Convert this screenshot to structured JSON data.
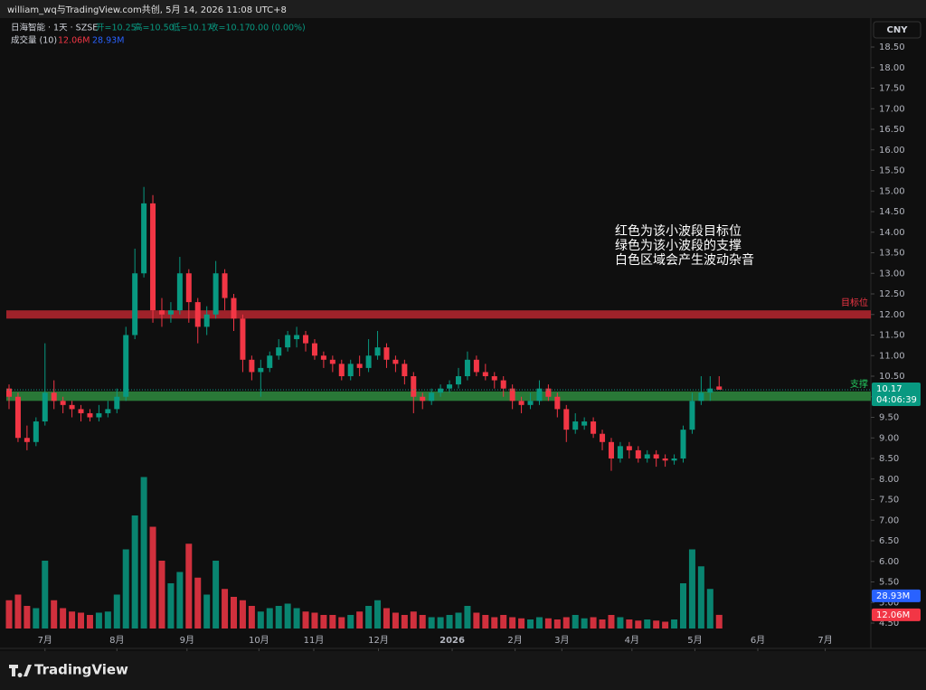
{
  "chart_data": {
    "type": "candlestick",
    "watermark": "william_wq与TradingView.com共创, 5月 14, 2026 11:08 UTC+8",
    "symbol": "日海智能 · 1天 · SZSE",
    "ohlc_labels": [
      "开=10.25",
      "高=10.50",
      "低=10.17",
      "收=10.17",
      "0.00 (0.00%)"
    ],
    "volume_title": "成交量 (10)",
    "currency": "CNY",
    "brand": "TradingView",
    "annotation": [
      "红色为该小波段目标位",
      "绿色为该小波段的支撑",
      "白色区域会产生波动杂音"
    ],
    "up_color": "#089981",
    "down_color": "#f23645",
    "open": [
      10.2,
      10.0,
      9.0,
      8.9,
      9.4,
      10.1,
      9.9,
      9.8,
      9.7,
      9.6,
      9.5,
      9.6,
      9.7,
      10.0,
      11.5,
      13.0,
      14.7,
      12.1,
      12.0,
      12.1,
      13.0,
      12.3,
      11.7,
      12.0,
      13.0,
      12.4,
      11.9,
      10.9,
      10.6,
      10.7,
      11.0,
      11.2,
      11.4,
      11.5,
      11.3,
      11.0,
      10.9,
      10.8,
      10.5,
      10.8,
      10.7,
      11.0,
      11.2,
      10.9,
      10.8,
      10.5,
      10.0,
      9.9,
      10.1,
      10.2,
      10.3,
      10.5,
      10.9,
      10.6,
      10.5,
      10.4,
      10.2,
      9.9,
      9.8,
      9.9,
      10.2,
      10.0,
      9.7,
      9.2,
      9.3,
      9.4,
      9.1,
      8.9,
      8.5,
      8.8,
      8.7,
      8.5,
      8.6,
      8.5,
      8.45,
      8.5,
      9.2,
      9.9,
      10.1,
      10.25
    ],
    "high": [
      10.3,
      10.1,
      9.3,
      9.5,
      11.3,
      10.4,
      10.0,
      9.9,
      9.8,
      9.7,
      9.8,
      9.9,
      10.2,
      11.7,
      13.6,
      15.1,
      14.9,
      12.4,
      12.3,
      13.4,
      13.1,
      12.4,
      12.2,
      13.3,
      13.1,
      12.5,
      12.0,
      11.0,
      10.9,
      11.1,
      11.4,
      11.6,
      11.7,
      11.6,
      11.4,
      11.1,
      11.0,
      10.9,
      10.9,
      11.0,
      11.4,
      11.6,
      11.3,
      11.0,
      10.9,
      10.6,
      10.1,
      10.2,
      10.3,
      10.4,
      10.7,
      11.1,
      11.0,
      10.8,
      10.6,
      10.5,
      10.3,
      10.0,
      10.1,
      10.4,
      10.3,
      10.1,
      9.8,
      9.6,
      9.5,
      9.5,
      9.2,
      9.0,
      8.9,
      8.9,
      8.8,
      8.7,
      8.7,
      8.6,
      8.6,
      9.3,
      10.1,
      10.5,
      10.5,
      10.5
    ],
    "low": [
      9.7,
      8.9,
      8.7,
      8.8,
      9.3,
      9.7,
      9.6,
      9.5,
      9.4,
      9.4,
      9.4,
      9.5,
      9.6,
      9.9,
      11.4,
      12.9,
      11.8,
      11.7,
      11.8,
      12.0,
      11.8,
      11.3,
      11.5,
      11.9,
      12.1,
      11.6,
      10.6,
      10.4,
      10.0,
      10.6,
      10.9,
      11.1,
      11.2,
      11.1,
      10.9,
      10.7,
      10.6,
      10.4,
      10.4,
      10.5,
      10.6,
      10.9,
      10.7,
      10.6,
      10.3,
      9.6,
      9.7,
      9.8,
      10.0,
      10.1,
      10.2,
      10.4,
      10.5,
      10.4,
      10.2,
      10.0,
      9.7,
      9.6,
      9.7,
      9.8,
      9.9,
      9.5,
      8.9,
      9.1,
      9.2,
      9.0,
      8.7,
      8.2,
      8.4,
      8.5,
      8.4,
      8.4,
      8.3,
      8.3,
      8.35,
      8.4,
      9.1,
      9.8,
      9.9,
      10.17
    ],
    "close": [
      10.0,
      9.0,
      8.9,
      9.4,
      10.1,
      9.9,
      9.8,
      9.7,
      9.6,
      9.5,
      9.6,
      9.7,
      10.0,
      11.5,
      13.0,
      14.7,
      12.1,
      12.0,
      12.1,
      13.0,
      12.3,
      11.7,
      12.0,
      13.0,
      12.4,
      11.9,
      10.9,
      10.6,
      10.7,
      11.0,
      11.2,
      11.5,
      11.5,
      11.3,
      11.0,
      10.9,
      10.8,
      10.5,
      10.8,
      10.7,
      11.0,
      11.2,
      10.9,
      10.8,
      10.5,
      10.0,
      9.9,
      10.1,
      10.2,
      10.3,
      10.5,
      10.9,
      10.6,
      10.5,
      10.4,
      10.2,
      9.9,
      9.8,
      9.9,
      10.2,
      10.0,
      9.7,
      9.2,
      9.4,
      9.4,
      9.1,
      8.9,
      8.5,
      8.8,
      8.7,
      8.5,
      8.6,
      8.5,
      8.45,
      8.5,
      9.2,
      9.9,
      10.1,
      10.2,
      10.17
    ],
    "volume": [
      25,
      30,
      20,
      18,
      60,
      25,
      18,
      15,
      14,
      12,
      14,
      15,
      30,
      70,
      100,
      134,
      90,
      60,
      40,
      50,
      75,
      45,
      30,
      60,
      35,
      28,
      25,
      20,
      15,
      18,
      20,
      22,
      18,
      15,
      14,
      12,
      12,
      10,
      12,
      15,
      20,
      25,
      18,
      14,
      12,
      15,
      12,
      10,
      10,
      12,
      14,
      20,
      14,
      12,
      10,
      12,
      10,
      9,
      8,
      10,
      9,
      8,
      10,
      12,
      9,
      10,
      8,
      12,
      10,
      8,
      7,
      8,
      7,
      6,
      8,
      40,
      70,
      55,
      35,
      12.06
    ],
    "last_volume": {
      "value": 12.06,
      "label": "12.06M",
      "color": "#f23645"
    },
    "volume_ma": {
      "value": 28.93,
      "label": "28.93M",
      "color": "#2962ff"
    },
    "last_price": {
      "value": 10.17,
      "label": "10.17",
      "countdown": "04:06:39",
      "color": "#089981"
    },
    "zones": [
      {
        "label": "目标位",
        "from": 11.9,
        "to": 12.1,
        "color": "#b8262f",
        "text_color": "#f23645"
      },
      {
        "label": "支撑",
        "from": 9.9,
        "to": 10.13,
        "color": "#2e8b3e",
        "text_color": "#22c55e"
      }
    ],
    "ylim": [
      4.2,
      19.0
    ],
    "yticks": [
      {
        "value": 4.5,
        "label": "4.50"
      },
      {
        "value": 5,
        "label": "5.00"
      },
      {
        "value": 5.5,
        "label": "5.50"
      },
      {
        "value": 6,
        "label": "6.00"
      },
      {
        "value": 6.5,
        "label": "6.50"
      },
      {
        "value": 7,
        "label": "7.00"
      },
      {
        "value": 7.5,
        "label": "7.50"
      },
      {
        "value": 8,
        "label": "8.00"
      },
      {
        "value": 8.5,
        "label": "8.50"
      },
      {
        "value": 9,
        "label": "9.00"
      },
      {
        "value": 9.5,
        "label": "9.50"
      },
      {
        "value": 10,
        "label": "10.00"
      },
      {
        "value": 10.5,
        "label": "10.50"
      },
      {
        "value": 11,
        "label": "11.00"
      },
      {
        "value": 11.5,
        "label": "11.50"
      },
      {
        "value": 12,
        "label": "12.00"
      },
      {
        "value": 12.5,
        "label": "12.50"
      },
      {
        "value": 13,
        "label": "13.00"
      },
      {
        "value": 13.5,
        "label": "13.50"
      },
      {
        "value": 14,
        "label": "14.00"
      },
      {
        "value": 14.5,
        "label": "14.50"
      },
      {
        "value": 15,
        "label": "15.00"
      },
      {
        "value": 15.5,
        "label": "15.50"
      },
      {
        "value": 16,
        "label": "16.00"
      },
      {
        "value": 16.5,
        "label": "16.50"
      },
      {
        "value": 17,
        "label": "17.00"
      },
      {
        "value": 17.5,
        "label": "17.50"
      },
      {
        "value": 18,
        "label": "18.00"
      },
      {
        "value": 18.5,
        "label": "18.50"
      }
    ],
    "xticks": [
      {
        "value": 4,
        "label": "7月"
      },
      {
        "value": 12,
        "label": "8月"
      },
      {
        "value": 19.8,
        "label": "9月"
      },
      {
        "value": 27.8,
        "label": "10月"
      },
      {
        "value": 33.9,
        "label": "11月"
      },
      {
        "value": 41.1,
        "label": "12月"
      },
      {
        "value": 49.3,
        "label": "2026"
      },
      {
        "value": 56.3,
        "label": "2月"
      },
      {
        "value": 61.5,
        "label": "3月"
      },
      {
        "value": 69.3,
        "label": "4月"
      },
      {
        "value": 76.3,
        "label": "5月"
      },
      {
        "value": 83.3,
        "label": "6月"
      },
      {
        "value": 90.8,
        "label": "7月"
      }
    ]
  }
}
